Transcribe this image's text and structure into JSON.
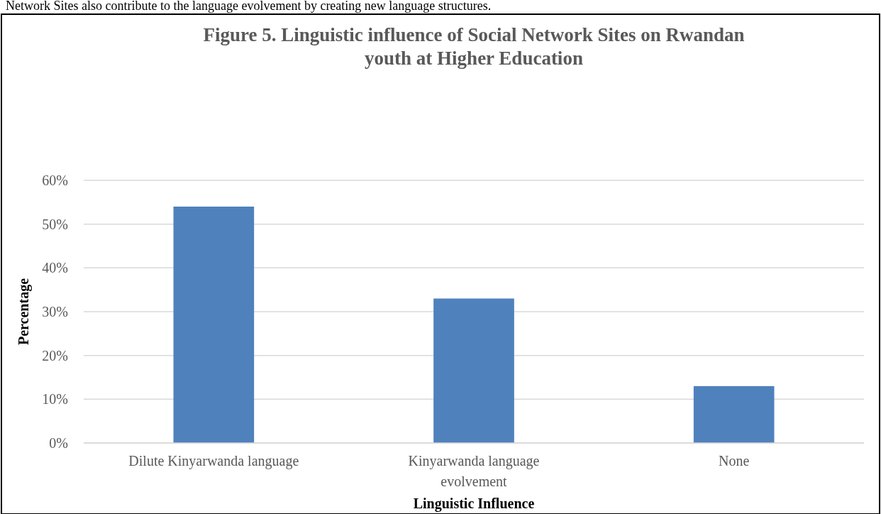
{
  "chart_data": {
    "type": "bar",
    "title": "Figure 5. Linguistic influence of Social Network Sites on Rwandan youth at Higher Education",
    "xlabel": "Linguistic Influence",
    "ylabel": "Percentage",
    "annotations": [
      "Network Sites also contribute to the language evolvement by creating new language structures."
    ],
    "categories": [
      "Dilute Kinyarwanda language",
      "Kinyarwanda language evolvement",
      "None"
    ],
    "values": [
      54,
      33,
      13
    ],
    "color": "#4f81bd",
    "ylim": [
      0,
      60
    ],
    "yticks": [
      {
        "value": 0,
        "label": "0%"
      },
      {
        "value": 10,
        "label": "10%"
      },
      {
        "value": 20,
        "label": "20%"
      },
      {
        "value": 30,
        "label": "30%"
      },
      {
        "value": 40,
        "label": "40%"
      },
      {
        "value": 50,
        "label": "50%"
      },
      {
        "value": 60,
        "label": "60%"
      }
    ],
    "grid": "y"
  }
}
